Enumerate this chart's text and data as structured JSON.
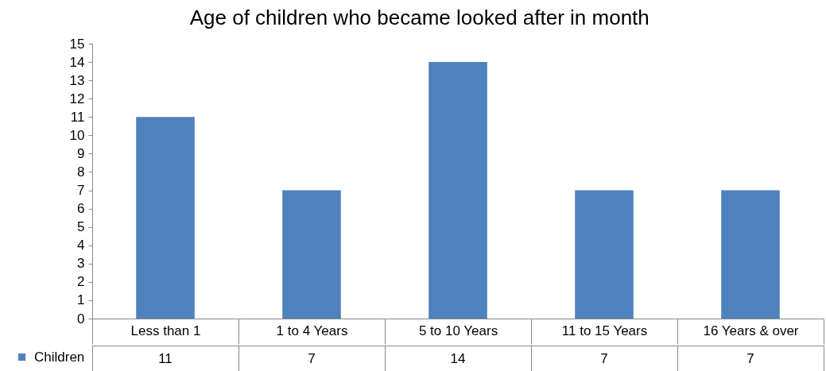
{
  "chart_data": {
    "type": "bar",
    "title": "Age of children who became looked after in month",
    "categories": [
      "Less than 1",
      "1 to 4 Years",
      "5 to 10 Years",
      "11 to 15 Years",
      "16 Years & over"
    ],
    "series": [
      {
        "name": "Children",
        "color": "#4f81bd",
        "values": [
          11,
          7,
          14,
          7,
          7
        ]
      }
    ],
    "ylim": [
      0,
      15
    ],
    "yticks": [
      0,
      1,
      2,
      3,
      4,
      5,
      6,
      7,
      8,
      9,
      10,
      11,
      12,
      13,
      14,
      15
    ],
    "legend": "bottom left",
    "data_labels": true
  }
}
